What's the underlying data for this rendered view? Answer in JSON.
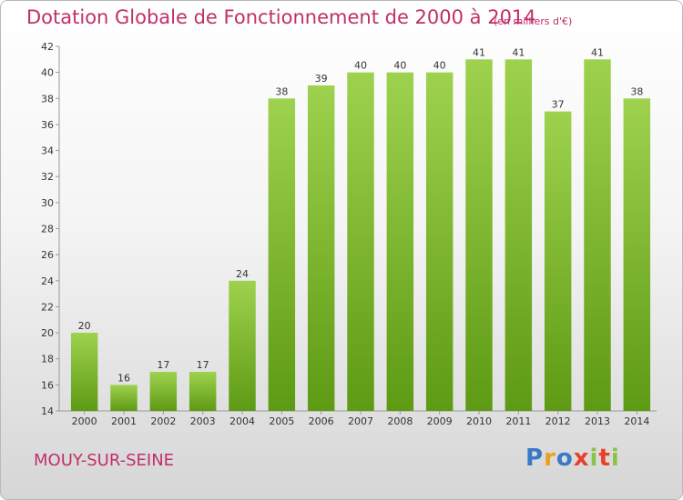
{
  "header": {
    "title": "Dotation Globale de Fonctionnement de 2000 à 2014",
    "unit": "(en milliers d'€)"
  },
  "footer": {
    "commune": "MOUY-SUR-SEINE",
    "logo_text": "Proxiti",
    "logo_colors": [
      "#3a78c8",
      "#e8a01f",
      "#3a78c8",
      "#e8402a",
      "#8bc34a",
      "#e8402a",
      "#8bc34a"
    ]
  },
  "colors": {
    "accent": "#c0306a",
    "bar_top": "#9ed24e",
    "bar_bottom": "#5e9a14"
  },
  "chart_data": {
    "type": "bar",
    "categories": [
      "2000",
      "2001",
      "2002",
      "2003",
      "2004",
      "2005",
      "2006",
      "2007",
      "2008",
      "2009",
      "2010",
      "2011",
      "2012",
      "2013",
      "2014"
    ],
    "values": [
      20,
      16,
      17,
      17,
      24,
      38,
      39,
      40,
      40,
      40,
      41,
      41,
      37,
      41,
      38
    ],
    "title": "Dotation Globale de Fonctionnement de 2000 à 2014",
    "ylim": [
      14,
      42
    ],
    "yticks": [
      14,
      16,
      18,
      20,
      22,
      24,
      26,
      28,
      30,
      32,
      34,
      36,
      38,
      40,
      42
    ],
    "grid": false,
    "data_labels": true
  }
}
